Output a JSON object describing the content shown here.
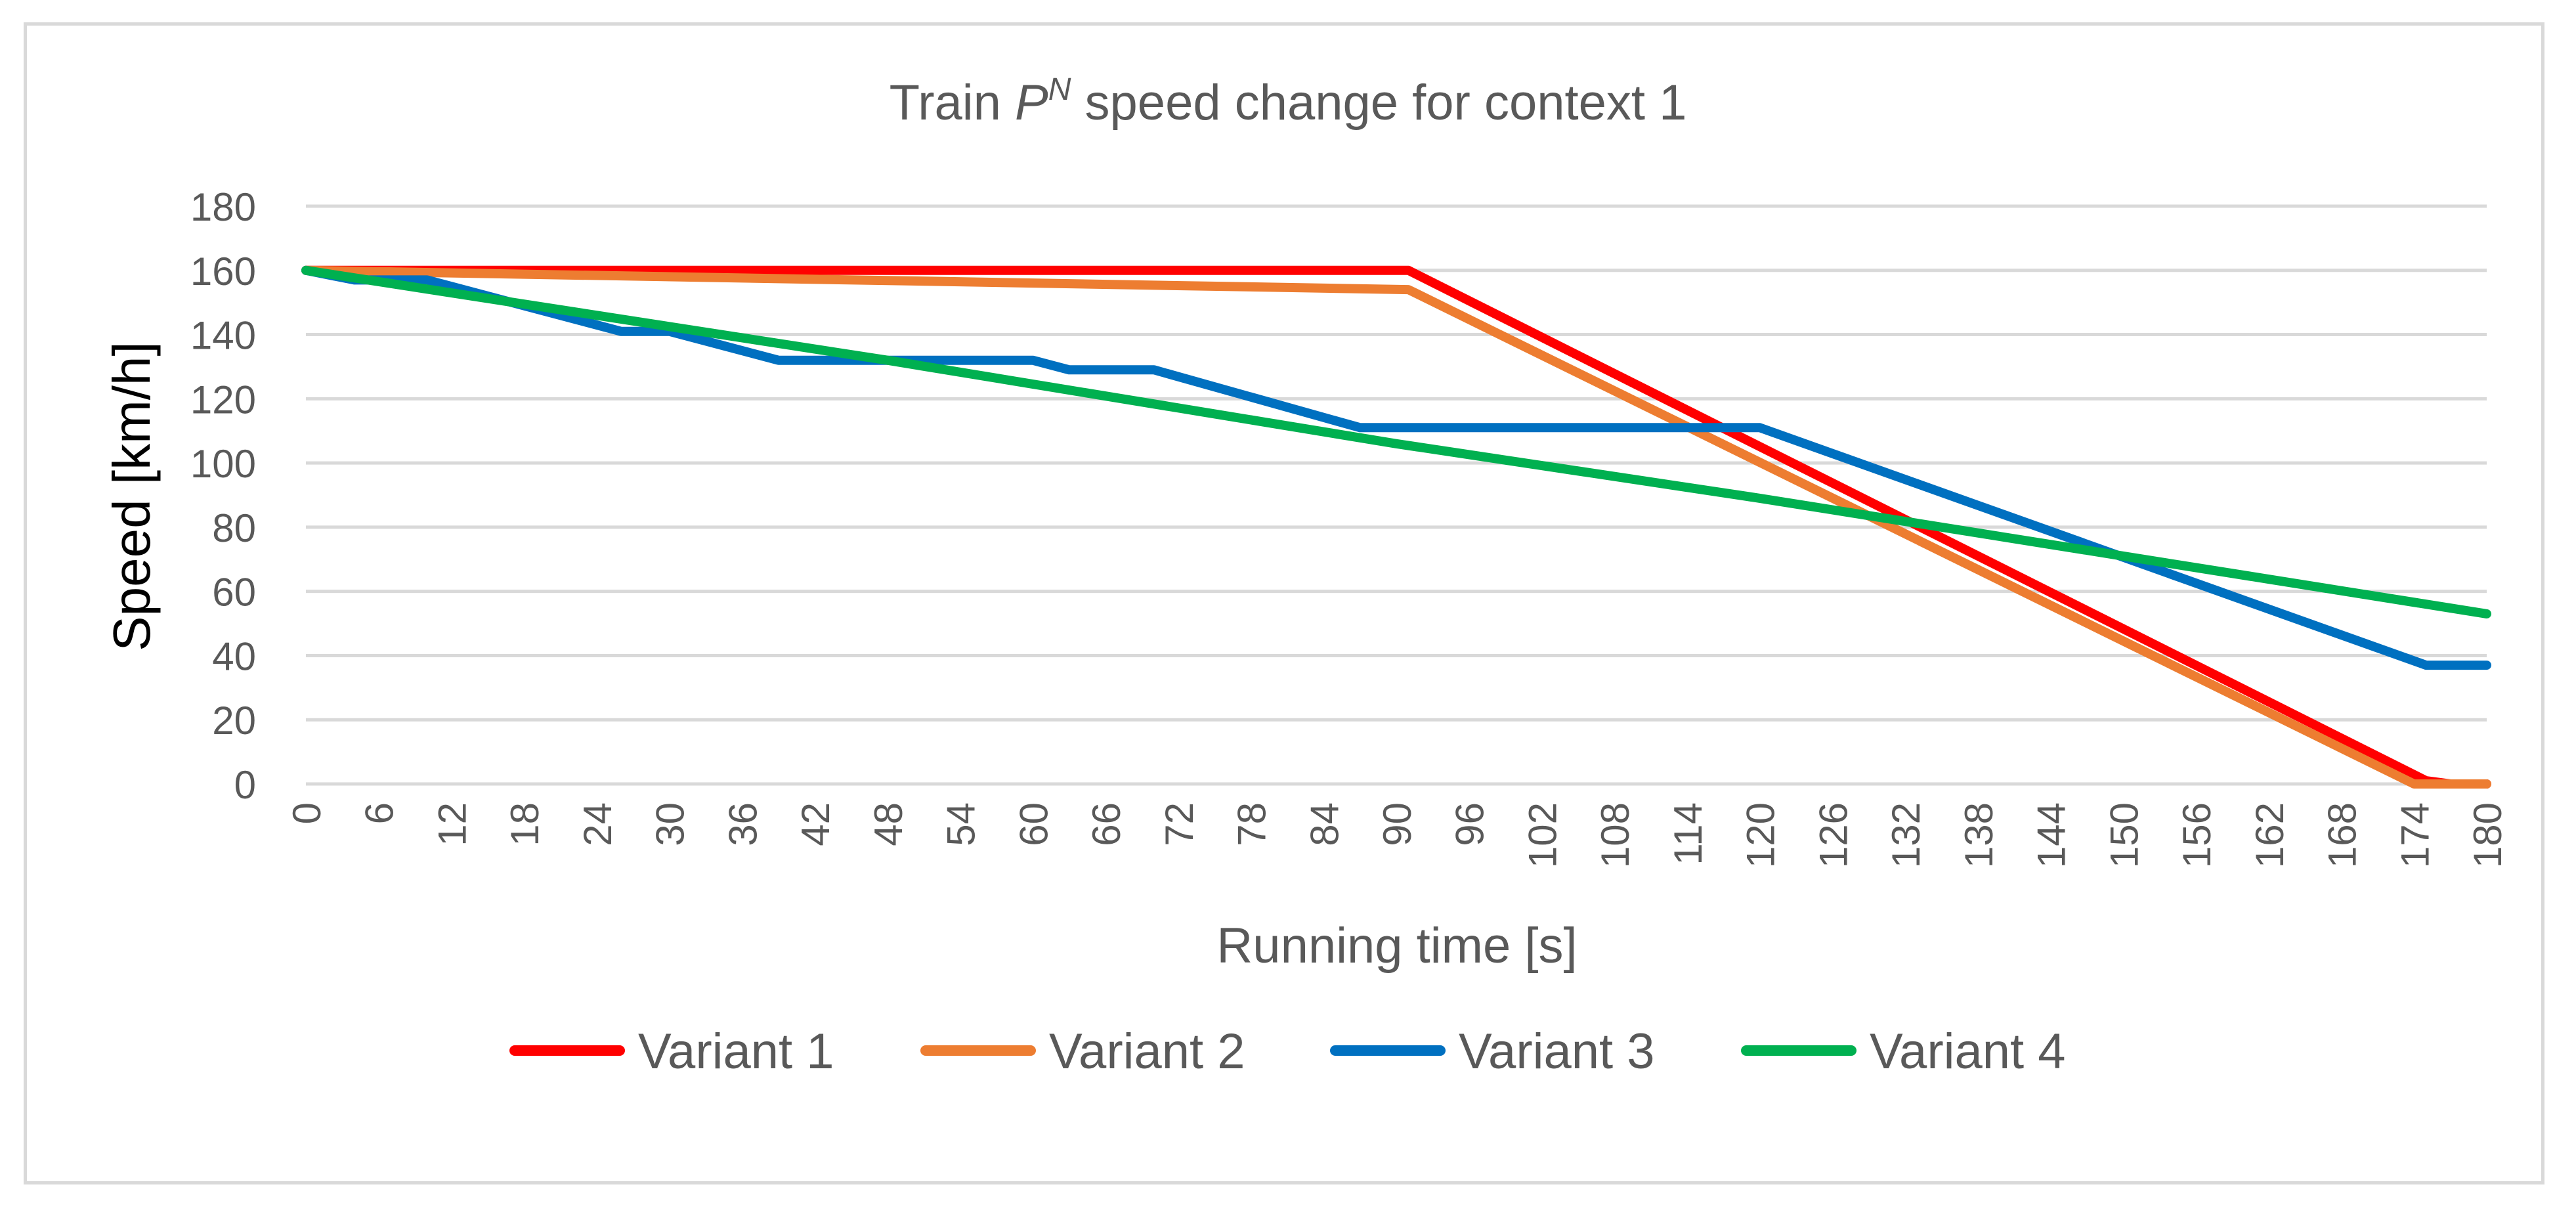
{
  "chart_data": {
    "type": "line",
    "title": {
      "prefix": "Train ",
      "symbol": "P",
      "superscript": "N",
      "suffix": " speed change for context   1"
    },
    "xlabel": "Running time [s]",
    "ylabel": "Speed [km/h]",
    "xlim": [
      0,
      180
    ],
    "ylim": [
      0,
      180
    ],
    "xticks": [
      0,
      6,
      12,
      18,
      24,
      30,
      36,
      42,
      48,
      54,
      60,
      66,
      72,
      78,
      84,
      90,
      96,
      102,
      108,
      114,
      120,
      126,
      132,
      138,
      144,
      150,
      156,
      162,
      168,
      174,
      180
    ],
    "yticks": [
      0,
      20,
      40,
      60,
      80,
      100,
      120,
      140,
      160,
      180
    ],
    "grid": "horizontal",
    "legend_position": "bottom",
    "series": [
      {
        "name": "Variant 1",
        "color": "#ff0000",
        "points": [
          [
            0,
            160
          ],
          [
            91,
            160
          ],
          [
            175,
            1
          ],
          [
            177,
            0
          ],
          [
            180,
            0
          ]
        ]
      },
      {
        "name": "Variant 2",
        "color": "#ed7d31",
        "points": [
          [
            0,
            160
          ],
          [
            91,
            154
          ],
          [
            174,
            0
          ],
          [
            180,
            0
          ]
        ]
      },
      {
        "name": "Variant 3",
        "color": "#0070c0",
        "points": [
          [
            0,
            160
          ],
          [
            4,
            157
          ],
          [
            10,
            157
          ],
          [
            26,
            141
          ],
          [
            30,
            141
          ],
          [
            39,
            132
          ],
          [
            60,
            132
          ],
          [
            63,
            129
          ],
          [
            70,
            129
          ],
          [
            87,
            111
          ],
          [
            120,
            111
          ],
          [
            175,
            37
          ],
          [
            180,
            37
          ]
        ]
      },
      {
        "name": "Variant 4",
        "color": "#00b050",
        "points": [
          [
            0,
            160
          ],
          [
            48,
            132
          ],
          [
            90,
            106
          ],
          [
            120,
            89
          ],
          [
            150,
            71
          ],
          [
            180,
            53
          ]
        ]
      }
    ],
    "colors": {
      "text": "#595959",
      "axis_title": "#000000",
      "grid": "#d9d9d9"
    }
  }
}
